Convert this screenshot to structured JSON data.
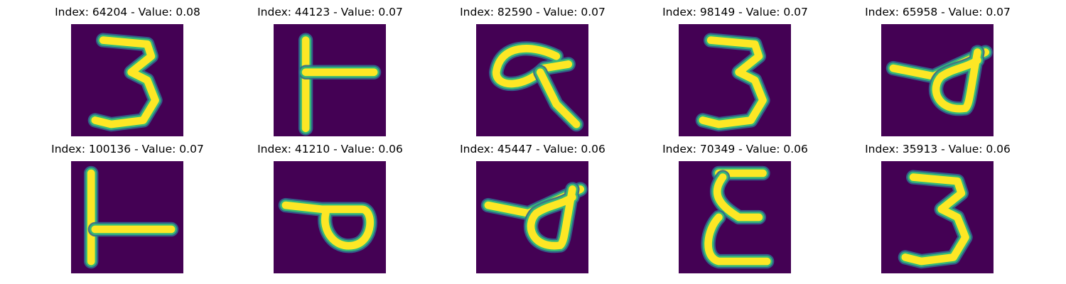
{
  "grid": {
    "colors": {
      "background": "#440154",
      "edge_outer": "#31688e",
      "edge_inner": "#35b779",
      "stroke": "#fde725"
    },
    "cells": [
      {
        "index": "64204",
        "value": "0.08",
        "glyph": "three"
      },
      {
        "index": "44123",
        "value": "0.07",
        "glyph": "t-shape"
      },
      {
        "index": "82590",
        "value": "0.07",
        "glyph": "alpha"
      },
      {
        "index": "98149",
        "value": "0.07",
        "glyph": "three"
      },
      {
        "index": "65958",
        "value": "0.07",
        "glyph": "loop-d"
      },
      {
        "index": "100136",
        "value": "0.07",
        "glyph": "l-shape"
      },
      {
        "index": "41210",
        "value": "0.06",
        "glyph": "loop-p"
      },
      {
        "index": "45447",
        "value": "0.06",
        "glyph": "loop-d"
      },
      {
        "index": "70349",
        "value": "0.06",
        "glyph": "epsilon"
      },
      {
        "index": "35913",
        "value": "0.06",
        "glyph": "three"
      }
    ]
  }
}
